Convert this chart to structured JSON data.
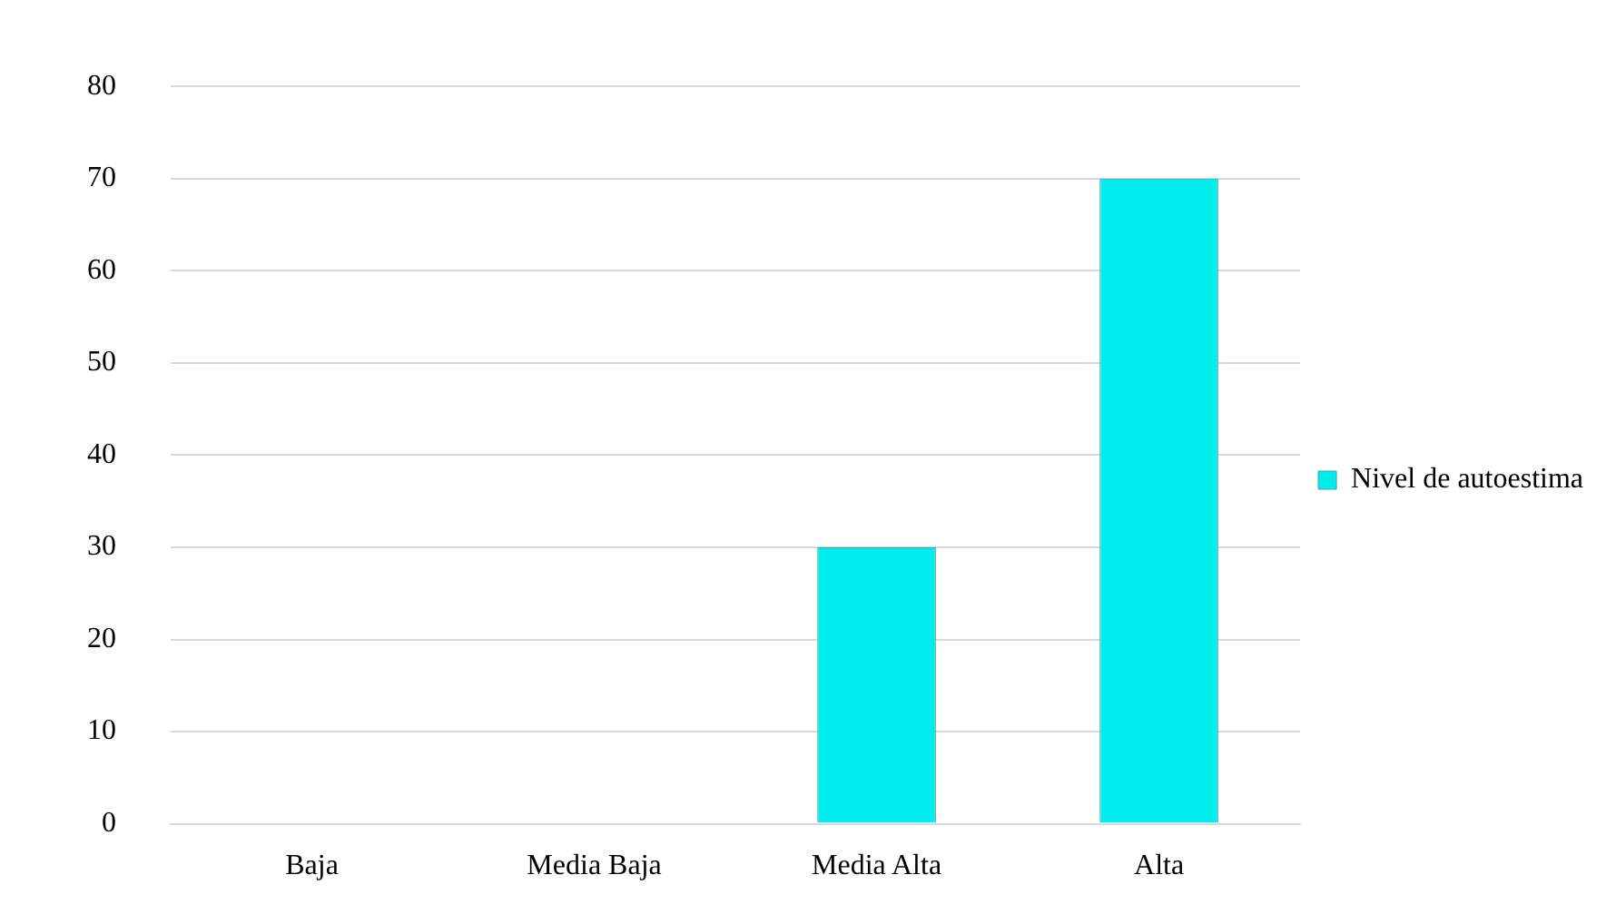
{
  "chart_data": {
    "type": "bar",
    "categories": [
      "Baja",
      "Media Baja",
      "Media Alta",
      "Alta"
    ],
    "series": [
      {
        "name": "Nivel de autoestima",
        "color": "#00eded",
        "values": [
          0,
          0,
          30,
          70
        ]
      }
    ],
    "ylim": [
      0,
      80
    ],
    "yticks": [
      0,
      10,
      20,
      30,
      40,
      50,
      60,
      70,
      80
    ],
    "grid": "y",
    "legend": "right"
  }
}
